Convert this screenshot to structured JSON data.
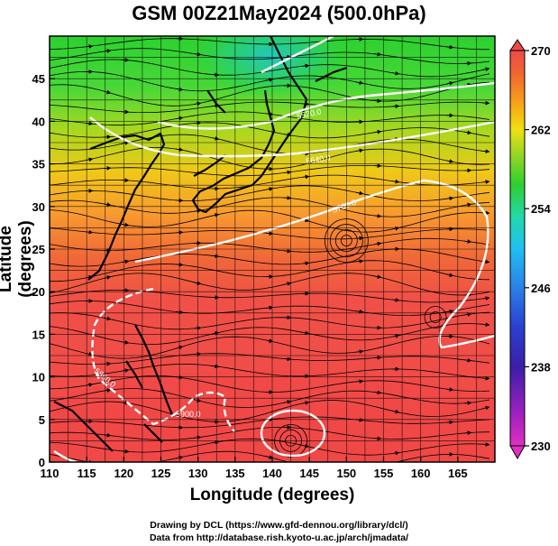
{
  "title": "GSM 00Z21May2024 (500.0hPa)",
  "x_axis": {
    "label": "Longitude (degrees)",
    "ticks": [
      "110",
      "115",
      "120",
      "125",
      "130",
      "135",
      "140",
      "145",
      "150",
      "155",
      "160",
      "165"
    ],
    "range": [
      110,
      170
    ]
  },
  "y_axis": {
    "label": "Latitude  (degrees)",
    "ticks": [
      "0",
      "5",
      "10",
      "15",
      "20",
      "25",
      "30",
      "35",
      "40",
      "45"
    ],
    "range": [
      0,
      50
    ]
  },
  "colorbar": {
    "ticks": [
      "230",
      "238",
      "246",
      "254",
      "262",
      "270"
    ],
    "range": [
      230,
      270
    ],
    "colors": [
      "#e030c0",
      "#3a1fa8",
      "#2a52d8",
      "#20c0f0",
      "#24d8a8",
      "#2cd030",
      "#90d820",
      "#f0e010",
      "#f8a018",
      "#f06830",
      "#f04848"
    ]
  },
  "contour_labels": [
    "5520.0",
    "5640.0",
    "5760.0",
    "5880.0",
    "5900.0"
  ],
  "credits": {
    "line1": "Drawing by DCL (https://www.gfd-dennou.org/library/dcl/)",
    "line2": "Data from http://database.rish.kyoto-u.ac.jp/arch/jmadata/"
  }
}
